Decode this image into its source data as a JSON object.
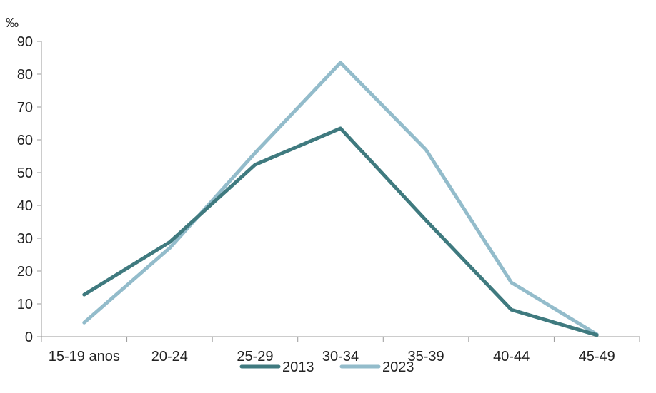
{
  "chart_data": {
    "type": "line",
    "title": "",
    "xlabel": "",
    "ylabel": "‰",
    "categories": [
      "15-19 anos",
      "20-24",
      "25-29",
      "30-34",
      "35-39",
      "40-44",
      "45-49"
    ],
    "ylim": [
      0,
      90
    ],
    "yticks": [
      0,
      10,
      20,
      30,
      40,
      50,
      60,
      70,
      80,
      90
    ],
    "grid": false,
    "legend_position": "bottom",
    "series": [
      {
        "name": "2013",
        "color": "#3f7a7f",
        "values": [
          12.8,
          28.8,
          52.4,
          63.5,
          35.5,
          8.2,
          0.5
        ]
      },
      {
        "name": "2023",
        "color": "#93bccb",
        "values": [
          4.3,
          27.0,
          56.0,
          83.5,
          57.0,
          16.5,
          0.7
        ]
      }
    ]
  }
}
